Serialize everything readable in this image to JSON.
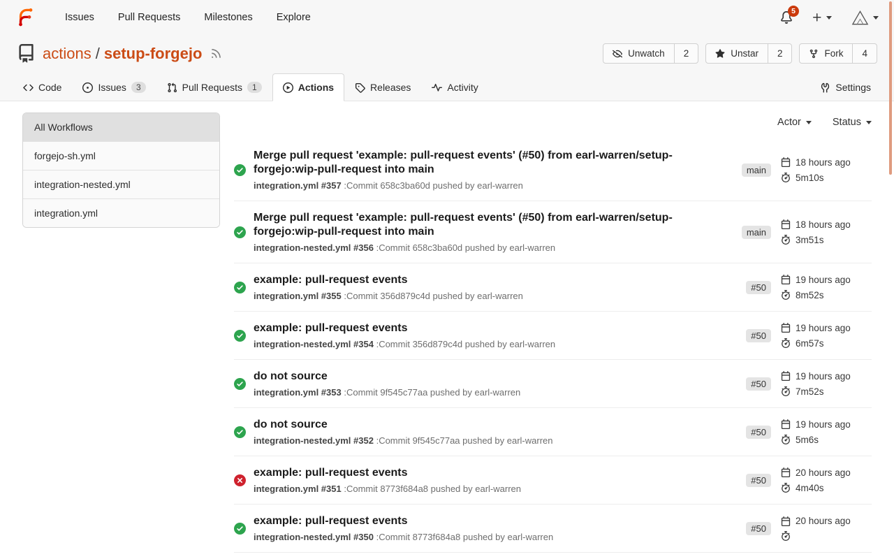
{
  "navbar": {
    "links": [
      "Issues",
      "Pull Requests",
      "Milestones",
      "Explore"
    ],
    "notification_count": "5"
  },
  "repo_header": {
    "owner": "actions",
    "separator": "/",
    "name": "setup-forgejo",
    "buttons": [
      {
        "name": "unwatch",
        "icon": "eye-slash",
        "label": "Unwatch",
        "count": "2"
      },
      {
        "name": "unstar",
        "icon": "star",
        "label": "Unstar",
        "count": "2"
      },
      {
        "name": "fork",
        "icon": "fork",
        "label": "Fork",
        "count": "4"
      }
    ]
  },
  "tabs": [
    {
      "name": "code",
      "icon": "code",
      "label": "Code"
    },
    {
      "name": "issues",
      "icon": "issue",
      "label": "Issues",
      "badge": "3"
    },
    {
      "name": "pull-requests",
      "icon": "pull-request",
      "label": "Pull Requests",
      "badge": "1"
    },
    {
      "name": "actions",
      "icon": "play",
      "label": "Actions",
      "active": true
    },
    {
      "name": "releases",
      "icon": "tag",
      "label": "Releases"
    },
    {
      "name": "activity",
      "icon": "pulse",
      "label": "Activity"
    }
  ],
  "settings_tab": {
    "label": "Settings",
    "icon": "tools"
  },
  "workflow_sidebar": {
    "items": [
      {
        "label": "All Workflows",
        "selected": true
      },
      {
        "label": "forgejo-sh.yml"
      },
      {
        "label": "integration-nested.yml"
      },
      {
        "label": "integration.yml"
      }
    ]
  },
  "filters": {
    "actor_label": "Actor",
    "status_label": "Status"
  },
  "runs": [
    {
      "status": "success",
      "title": "Merge pull request 'example: pull-request events' (#50) from earl-warren/setup-forgejo:wip-pull-request into main",
      "workflow": "integration.yml #357",
      "commit_info": ":Commit 658c3ba60d pushed by earl-warren",
      "ref_badge": "main",
      "time_ago": "18 hours ago",
      "duration": "5m10s"
    },
    {
      "status": "success",
      "title": "Merge pull request 'example: pull-request events' (#50) from earl-warren/setup-forgejo:wip-pull-request into main",
      "workflow": "integration-nested.yml #356",
      "commit_info": ":Commit 658c3ba60d pushed by earl-warren",
      "ref_badge": "main",
      "time_ago": "18 hours ago",
      "duration": "3m51s"
    },
    {
      "status": "success",
      "title": "example: pull-request events",
      "workflow": "integration.yml #355",
      "commit_info": ":Commit 356d879c4d pushed by earl-warren",
      "ref_badge": "#50",
      "time_ago": "19 hours ago",
      "duration": "8m52s"
    },
    {
      "status": "success",
      "title": "example: pull-request events",
      "workflow": "integration-nested.yml #354",
      "commit_info": ":Commit 356d879c4d pushed by earl-warren",
      "ref_badge": "#50",
      "time_ago": "19 hours ago",
      "duration": "6m57s"
    },
    {
      "status": "success",
      "title": "do not source",
      "workflow": "integration.yml #353",
      "commit_info": ":Commit 9f545c77aa pushed by earl-warren",
      "ref_badge": "#50",
      "time_ago": "19 hours ago",
      "duration": "7m52s"
    },
    {
      "status": "success",
      "title": "do not source",
      "workflow": "integration-nested.yml #352",
      "commit_info": ":Commit 9f545c77aa pushed by earl-warren",
      "ref_badge": "#50",
      "time_ago": "19 hours ago",
      "duration": "5m6s"
    },
    {
      "status": "failure",
      "title": "example: pull-request events",
      "workflow": "integration.yml #351",
      "commit_info": ":Commit 8773f684a8 pushed by earl-warren",
      "ref_badge": "#50",
      "time_ago": "20 hours ago",
      "duration": "4m40s"
    },
    {
      "status": "success",
      "title": "example: pull-request events",
      "workflow": "integration-nested.yml #350",
      "commit_info": ":Commit 8773f684a8 pushed by earl-warren",
      "ref_badge": "#50",
      "time_ago": "20 hours ago",
      "duration": ""
    }
  ],
  "colors": {
    "success": "#2da44e",
    "failure": "#cf222e",
    "link": "#cb4c16",
    "notification_badge": "#cb3a0c",
    "scrollbar_thumb": "#df9b7f"
  }
}
